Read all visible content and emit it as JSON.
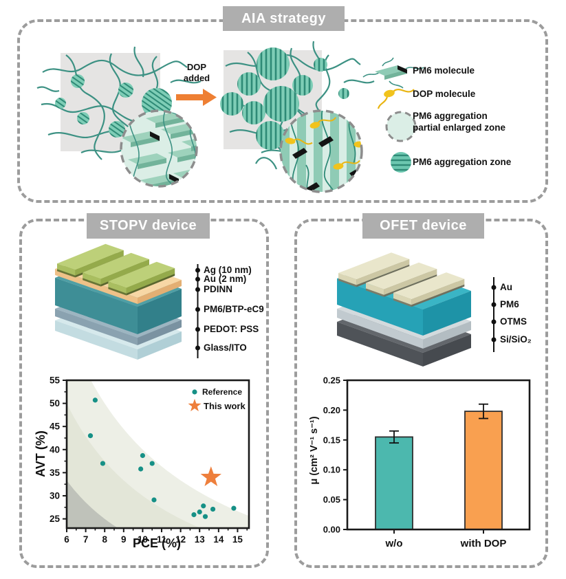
{
  "colors": {
    "teal_line": "#3c9183",
    "teal_fill": "#7ecdb6",
    "mint": "#dbeee6",
    "arrow_orange": "#ee7f33",
    "scatter_point": "#169086",
    "star_orange": "#ee7f3c",
    "bar_teal": "#4cb8ae",
    "bar_orange": "#f9a050",
    "panel_border": "#9c9c9c",
    "title_bg": "#aeaeae"
  },
  "panels": {
    "aia": {
      "title": "AIA strategy",
      "arrow_label_line1": "DOP",
      "arrow_label_line2": "added",
      "legend": [
        {
          "label": "PM6 molecule"
        },
        {
          "label": "DOP molecule"
        },
        {
          "label": "PM6 aggregation",
          "label2": "partial enlarged zone"
        },
        {
          "label": "PM6 aggregation zone"
        }
      ]
    },
    "stopv": {
      "title": "STOPV device",
      "layers": [
        "Ag (10 nm)",
        "Au (2 nm)",
        "PDINN",
        "PM6/BTP-eC9",
        "PEDOT: PSS",
        "Glass/ITO"
      ]
    },
    "ofet": {
      "title": "OFET device",
      "layers": [
        "Au",
        "PM6",
        "OTMS",
        "Si/SiO₂"
      ]
    }
  },
  "chart_data": [
    {
      "type": "scatter",
      "xlabel": "PCE (%)",
      "ylabel": "AVT (%)",
      "xlim": [
        6,
        15.6
      ],
      "ylim": [
        23,
        55
      ],
      "xticks": [
        6,
        7,
        8,
        9,
        10,
        11,
        12,
        13,
        14,
        15
      ],
      "yticks": [
        25,
        30,
        35,
        40,
        45,
        50,
        55
      ],
      "legend_position": "top-right",
      "series": [
        {
          "name": "Reference",
          "marker": "dot",
          "color": "#169086",
          "points": [
            [
              7.5,
              50.7
            ],
            [
              7.25,
              43
            ],
            [
              7.9,
              37
            ],
            [
              10.0,
              38.7
            ],
            [
              9.9,
              35.8
            ],
            [
              10.5,
              37.0
            ],
            [
              10.6,
              29.1
            ],
            [
              12.7,
              25.9
            ],
            [
              13.0,
              26.5
            ],
            [
              13.2,
              27.8
            ],
            [
              13.3,
              25.5
            ],
            [
              13.7,
              27.1
            ],
            [
              14.8,
              27.3
            ]
          ]
        },
        {
          "name": "This work",
          "marker": "star",
          "color": "#ee7f3c",
          "points": [
            [
              13.6,
              34
            ]
          ]
        }
      ],
      "bands": [
        {
          "boundary_xy_product": 400,
          "color": "#edefe6"
        },
        {
          "boundary_xy_product": 300,
          "color": "#e3e6d8"
        },
        {
          "boundary_xy_product": 200,
          "color": "#bfc2ba"
        }
      ]
    },
    {
      "type": "bar",
      "categories": [
        "w/o",
        "with DOP"
      ],
      "values": [
        0.155,
        0.198
      ],
      "errors": [
        0.01,
        0.012
      ],
      "colors": [
        "#4cb8ae",
        "#f9a050"
      ],
      "ylabel": "μ (cm² V⁻¹ s⁻¹)",
      "ylim": [
        0,
        0.25
      ],
      "yticks": [
        0.0,
        0.05,
        0.1,
        0.15,
        0.2,
        0.25
      ]
    }
  ]
}
